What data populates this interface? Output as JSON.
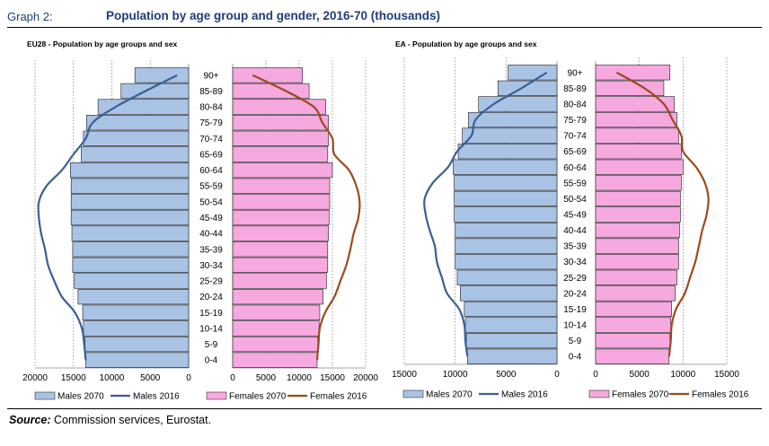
{
  "header": {
    "graph_number": "Graph 2:",
    "title": "Population by age group and gender, 2016-70 (thousands)"
  },
  "source": {
    "label": "Source:",
    "text": " Commission services, Eurostat."
  },
  "colors": {
    "males_bar": "#a9c3e5",
    "males_line": "#3a5f95",
    "females_bar": "#f5a9df",
    "females_line": "#9c4a1c"
  },
  "chart_data": [
    {
      "type": "bar",
      "title": "EU28 - Population by age groups and sex",
      "categories": [
        "0-4",
        "5-9",
        "10-14",
        "15-19",
        "20-24",
        "25-29",
        "30-34",
        "35-39",
        "40-44",
        "45-49",
        "50-54",
        "55-59",
        "60-64",
        "65-69",
        "70-74",
        "75-79",
        "80-84",
        "85-89",
        "90+"
      ],
      "series": [
        {
          "name": "Males 2070",
          "side": "left",
          "kind": "bar",
          "values": [
            13400,
            13500,
            13700,
            13800,
            14400,
            14900,
            15100,
            15100,
            15200,
            15300,
            15300,
            15300,
            15400,
            14000,
            13700,
            13300,
            11800,
            8800,
            7000
          ]
        },
        {
          "name": "Males 2016",
          "side": "left",
          "kind": "line",
          "values": [
            13400,
            13600,
            13900,
            14800,
            16500,
            17500,
            18300,
            18700,
            19200,
            19500,
            19500,
            18500,
            16500,
            15000,
            13400,
            12500,
            9500,
            5600,
            1500
          ]
        },
        {
          "name": "Females 2070",
          "side": "right",
          "kind": "bar",
          "values": [
            12700,
            12800,
            13000,
            13100,
            13600,
            14100,
            14300,
            14300,
            14400,
            14500,
            14600,
            14600,
            15000,
            14300,
            14400,
            14400,
            14000,
            11500,
            10500
          ]
        },
        {
          "name": "Females 2016",
          "side": "right",
          "kind": "line",
          "values": [
            12700,
            12900,
            13100,
            13900,
            15300,
            16200,
            17100,
            17700,
            18200,
            18900,
            19100,
            18600,
            17500,
            15300,
            15000,
            13500,
            12200,
            8000,
            3000
          ]
        }
      ],
      "left_axis": {
        "max": 20000,
        "ticks": [
          20000,
          15000,
          10000,
          5000,
          0
        ],
        "tick_labels": [
          "20000",
          "15000",
          "10000",
          "5000",
          "0"
        ]
      },
      "right_axis": {
        "max": 20000,
        "ticks": [
          0,
          5000,
          10000,
          15000,
          20000
        ],
        "tick_labels": [
          "0",
          "5000",
          "10000",
          "15000",
          "20000"
        ]
      },
      "legend": [
        "Males 2070",
        "Males 2016",
        "Females 2070",
        "Females 2016"
      ],
      "legend_position": "bottom"
    },
    {
      "type": "bar",
      "title": "EA - Population by age groups and sex",
      "categories": [
        "0-4",
        "5-9",
        "10-14",
        "15-19",
        "20-24",
        "25-29",
        "30-34",
        "35-39",
        "40-44",
        "45-49",
        "50-54",
        "55-59",
        "60-64",
        "65-69",
        "70-74",
        "75-79",
        "80-84",
        "85-89",
        "90+"
      ],
      "series": [
        {
          "name": "Males 2070",
          "side": "left",
          "kind": "bar",
          "values": [
            8800,
            8900,
            9000,
            9100,
            9500,
            9800,
            10000,
            10000,
            10000,
            10100,
            10100,
            10100,
            10200,
            9700,
            9300,
            8700,
            7700,
            5800,
            4800
          ]
        },
        {
          "name": "Males 2016",
          "side": "left",
          "kind": "line",
          "values": [
            8800,
            9000,
            9100,
            9600,
            10800,
            11300,
            11800,
            12000,
            12500,
            12900,
            13000,
            12200,
            10700,
            9800,
            8400,
            8000,
            6200,
            3500,
            1000
          ]
        },
        {
          "name": "Females 2070",
          "side": "right",
          "kind": "bar",
          "values": [
            8400,
            8500,
            8600,
            8700,
            9100,
            9300,
            9500,
            9500,
            9600,
            9700,
            9700,
            9800,
            10000,
            9800,
            9500,
            9300,
            9000,
            7800,
            8500
          ]
        },
        {
          "name": "Females 2016",
          "side": "right",
          "kind": "line",
          "values": [
            8400,
            8600,
            8700,
            9200,
            10200,
            10800,
            11400,
            11800,
            12200,
            12700,
            12900,
            12500,
            11500,
            10000,
            9800,
            8800,
            7800,
            5600,
            2400
          ]
        }
      ],
      "left_axis": {
        "max": 15000,
        "ticks": [
          15000,
          10000,
          5000,
          0
        ],
        "tick_labels": [
          "15000",
          "10000",
          "5000",
          "0"
        ]
      },
      "right_axis": {
        "max": 15000,
        "ticks": [
          0,
          5000,
          10000,
          15000
        ],
        "tick_labels": [
          "0",
          "5000",
          "10000",
          "15000"
        ]
      },
      "legend": [
        "Males 2070",
        "Males 2016",
        "Females 2070",
        "Females 2016"
      ],
      "legend_position": "bottom"
    }
  ]
}
